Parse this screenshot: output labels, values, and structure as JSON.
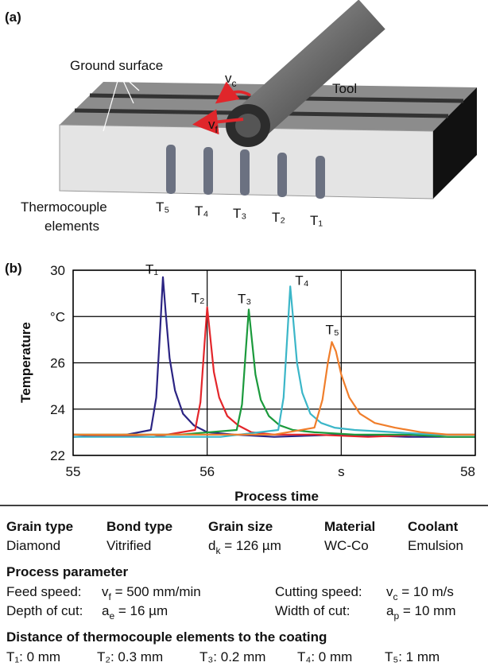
{
  "panel_a": {
    "label": "(a)",
    "ground_surface": "Ground surface",
    "tool": "Tool",
    "vc": {
      "text": "v",
      "sub": "c"
    },
    "vf": {
      "text": "v",
      "sub": "f"
    },
    "thermocouple": [
      "Thermocouple",
      "elements"
    ],
    "elements": [
      "T₅",
      "T₄",
      "T₃",
      "T₂",
      "T₁"
    ]
  },
  "chart_data": {
    "type": "line",
    "panel_label": "(b)",
    "xlabel": "Process time",
    "ylabel": "Temperature",
    "xlim": [
      55,
      58
    ],
    "ylim": [
      22,
      30
    ],
    "xticks": [
      55,
      56,
      {
        "value": 57,
        "label": "s"
      },
      58
    ],
    "yticks": [
      22,
      24,
      26,
      {
        "value": 28,
        "label": "°C"
      },
      30
    ],
    "grid": true,
    "series": [
      {
        "name": "T₁",
        "color": "#2b2483",
        "x": [
          55,
          55.4,
          55.58,
          55.62,
          55.65,
          55.67,
          55.69,
          55.72,
          55.76,
          55.82,
          55.9,
          56,
          56.2,
          56.5,
          57,
          57.5,
          58
        ],
        "values": [
          22.8,
          22.9,
          23.1,
          24.5,
          27.5,
          29.7,
          28.2,
          26.2,
          24.8,
          23.8,
          23.3,
          23.0,
          22.9,
          22.8,
          22.9,
          22.8,
          22.8
        ]
      },
      {
        "name": "T₂",
        "color": "#e3262b",
        "x": [
          55,
          55.6,
          55.91,
          55.95,
          55.98,
          56.0,
          56.02,
          56.05,
          56.09,
          56.15,
          56.23,
          56.33,
          56.5,
          56.8,
          57.2,
          57.6,
          58
        ],
        "values": [
          22.9,
          22.8,
          23.1,
          24.3,
          26.8,
          28.4,
          27.3,
          25.6,
          24.5,
          23.7,
          23.3,
          23.0,
          22.9,
          22.9,
          22.8,
          22.9,
          22.9
        ]
      },
      {
        "name": "T₃",
        "color": "#1b9a3c",
        "x": [
          55,
          55.8,
          56.22,
          56.26,
          56.29,
          56.31,
          56.33,
          56.36,
          56.4,
          56.46,
          56.54,
          56.64,
          56.8,
          57.1,
          57.5,
          57.8,
          58
        ],
        "values": [
          22.9,
          22.9,
          23.1,
          24.2,
          26.7,
          28.3,
          27.2,
          25.5,
          24.4,
          23.7,
          23.3,
          23.1,
          23.0,
          22.9,
          22.9,
          22.8,
          22.8
        ]
      },
      {
        "name": "T₄",
        "color": "#3bb6c8",
        "x": [
          55,
          56.1,
          56.53,
          56.57,
          56.6,
          56.62,
          56.64,
          56.67,
          56.71,
          56.77,
          56.85,
          56.95,
          57.1,
          57.4,
          57.7,
          58
        ],
        "values": [
          22.8,
          22.8,
          23.1,
          24.5,
          27.4,
          29.3,
          28.0,
          26.0,
          24.7,
          23.8,
          23.4,
          23.2,
          23.1,
          23.0,
          22.9,
          22.9
        ]
      },
      {
        "name": "T₅",
        "color": "#f07e2b",
        "x": [
          55,
          56.5,
          56.8,
          56.86,
          56.9,
          56.93,
          56.96,
          57.0,
          57.06,
          57.14,
          57.25,
          57.4,
          57.6,
          57.8,
          58
        ],
        "values": [
          22.9,
          22.9,
          23.2,
          24.4,
          26.0,
          26.9,
          26.5,
          25.5,
          24.5,
          23.8,
          23.4,
          23.2,
          23.0,
          22.9,
          22.9
        ]
      }
    ]
  },
  "table": {
    "headers": [
      "Grain type",
      "Bond type",
      "Grain size",
      "Material",
      "Coolant"
    ],
    "values": [
      {
        "text": "Diamond"
      },
      {
        "text": "Vitrified"
      },
      {
        "text": "d",
        "sub": "k",
        "rest": " = 126 µm"
      },
      {
        "text": "WC-Co"
      },
      {
        "text": "Emulsion"
      }
    ],
    "process_title": "Process parameter",
    "process": [
      [
        {
          "label": "Feed speed:",
          "value": {
            "text": "v",
            "sub": "f",
            "rest": " = 500 mm/min"
          }
        },
        {
          "label": "Cutting speed:",
          "value": {
            "text": "v",
            "sub": "c",
            "rest": " = 10 m/s"
          }
        }
      ],
      [
        {
          "label": "Depth of cut:",
          "value": {
            "text": "a",
            "sub": "e",
            "rest": " = 16 µm"
          }
        },
        {
          "label": "Width of cut:",
          "value": {
            "text": "a",
            "sub": "p",
            "rest": " = 10 mm"
          }
        }
      ]
    ],
    "distance_title": "Distance of thermocouple elements to the coating",
    "distances": [
      "T₁: 0 mm",
      "T₂: 0.3 mm",
      "T₃: 0.2 mm",
      "T₄: 0 mm",
      "T₅: 1 mm"
    ]
  }
}
